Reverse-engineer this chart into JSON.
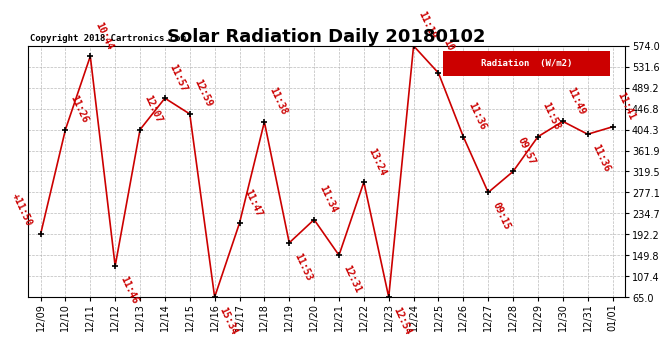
{
  "title": "Solar Radiation Daily 20180102",
  "copyright": "Copyright 2018 Cartronics.com",
  "legend_label": "Radiation  (W/m2)",
  "dates": [
    "12/09",
    "12/10",
    "12/11",
    "12/12",
    "12/13",
    "12/14",
    "12/15",
    "12/16",
    "12/17",
    "12/18",
    "12/19",
    "12/20",
    "12/21",
    "12/22",
    "12/23",
    "12/24",
    "12/25",
    "12/26",
    "12/27",
    "12/28",
    "12/29",
    "12/30",
    "12/31",
    "01/01"
  ],
  "values": [
    192.2,
    404.3,
    553.0,
    128.0,
    404.3,
    468.0,
    436.0,
    65.0,
    215.0,
    420.0,
    175.0,
    222.0,
    149.8,
    298.0,
    65.0,
    574.0,
    519.0,
    390.0,
    277.1,
    319.5,
    390.0,
    421.0,
    395.0,
    410.0
  ],
  "time_labels": [
    "11:50",
    "11:26",
    "10:44",
    "11:46",
    "12:07",
    "11:57",
    "12:59",
    "15:34",
    "11:47",
    "11:38",
    "11:53",
    "11:34",
    "12:31",
    "13:24",
    "12:54",
    "11:19",
    "10:59",
    "11:36",
    "09:15",
    "09:57",
    "11:58",
    "11:49",
    "11:36",
    "11:41"
  ],
  "label_above": [
    true,
    true,
    true,
    false,
    true,
    true,
    true,
    false,
    true,
    true,
    false,
    true,
    false,
    true,
    false,
    true,
    true,
    true,
    false,
    true,
    true,
    true,
    false,
    true
  ],
  "label_special_first": true,
  "line_color": "#cc0000",
  "marker_color": "#000000",
  "label_color": "#cc0000",
  "background_color": "#ffffff",
  "grid_color": "#aaaaaa",
  "ylim": [
    65.0,
    574.0
  ],
  "yticks": [
    65.0,
    107.4,
    149.8,
    192.2,
    234.7,
    277.1,
    319.5,
    361.9,
    404.3,
    446.8,
    489.2,
    531.6,
    574.0
  ],
  "title_fontsize": 13,
  "label_fontsize": 7,
  "copyright_fontsize": 6.5,
  "tick_fontsize": 7
}
